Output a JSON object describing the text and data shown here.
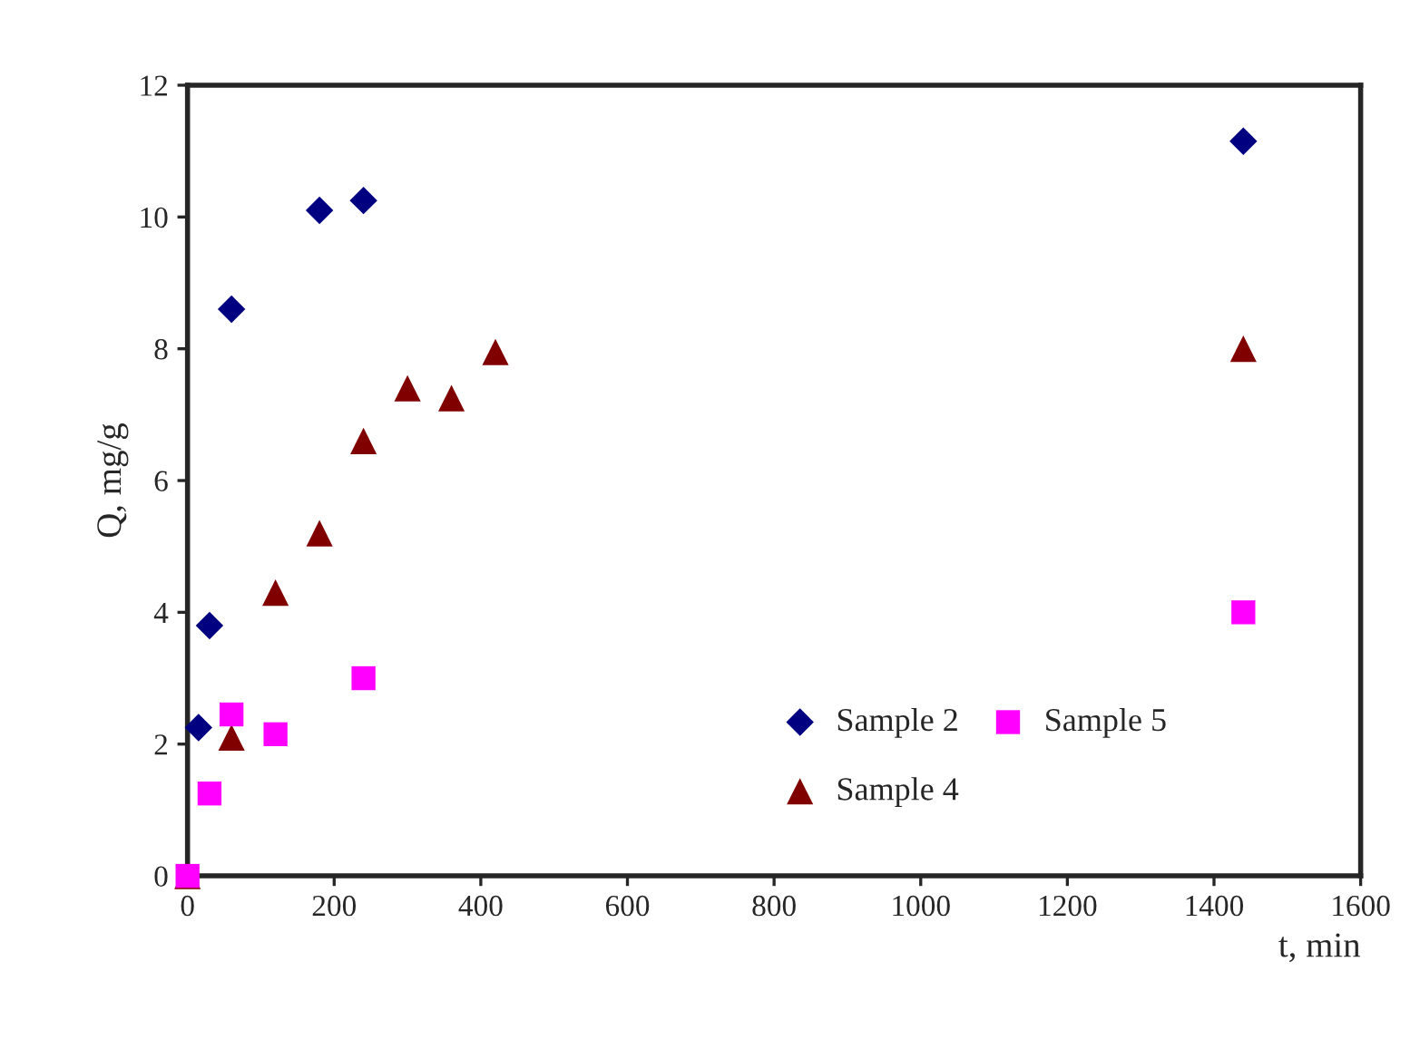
{
  "chart_data": {
    "type": "scatter",
    "xlabel": "t, min",
    "ylabel": "Q, mg/g",
    "xlim": [
      0,
      1600
    ],
    "xticks": [
      0,
      200,
      400,
      600,
      800,
      1000,
      1200,
      1400,
      1600
    ],
    "ylim": [
      0,
      12
    ],
    "yticks": [
      0,
      2,
      4,
      6,
      8,
      10,
      12
    ],
    "grid": false,
    "legend": "bottom right",
    "series": [
      {
        "name": "Sample 2",
        "color": "#000080",
        "marker": "diamond",
        "x": [
          15,
          30,
          60,
          180,
          240,
          1440
        ],
        "values": [
          2.25,
          3.8,
          8.6,
          10.1,
          10.25,
          11.15
        ]
      },
      {
        "name": "Sample 4",
        "color": "#800000",
        "marker": "triangle",
        "x": [
          0,
          60,
          120,
          180,
          240,
          300,
          360,
          420,
          1440
        ],
        "values": [
          0,
          2.1,
          4.3,
          5.2,
          6.6,
          7.4,
          7.25,
          7.95,
          8.0
        ]
      },
      {
        "name": "Sample 5",
        "color": "#ff00ff",
        "marker": "square",
        "x": [
          0,
          30,
          60,
          120,
          240,
          1440
        ],
        "values": [
          0,
          1.25,
          2.45,
          2.15,
          3.0,
          4.0
        ]
      }
    ]
  }
}
